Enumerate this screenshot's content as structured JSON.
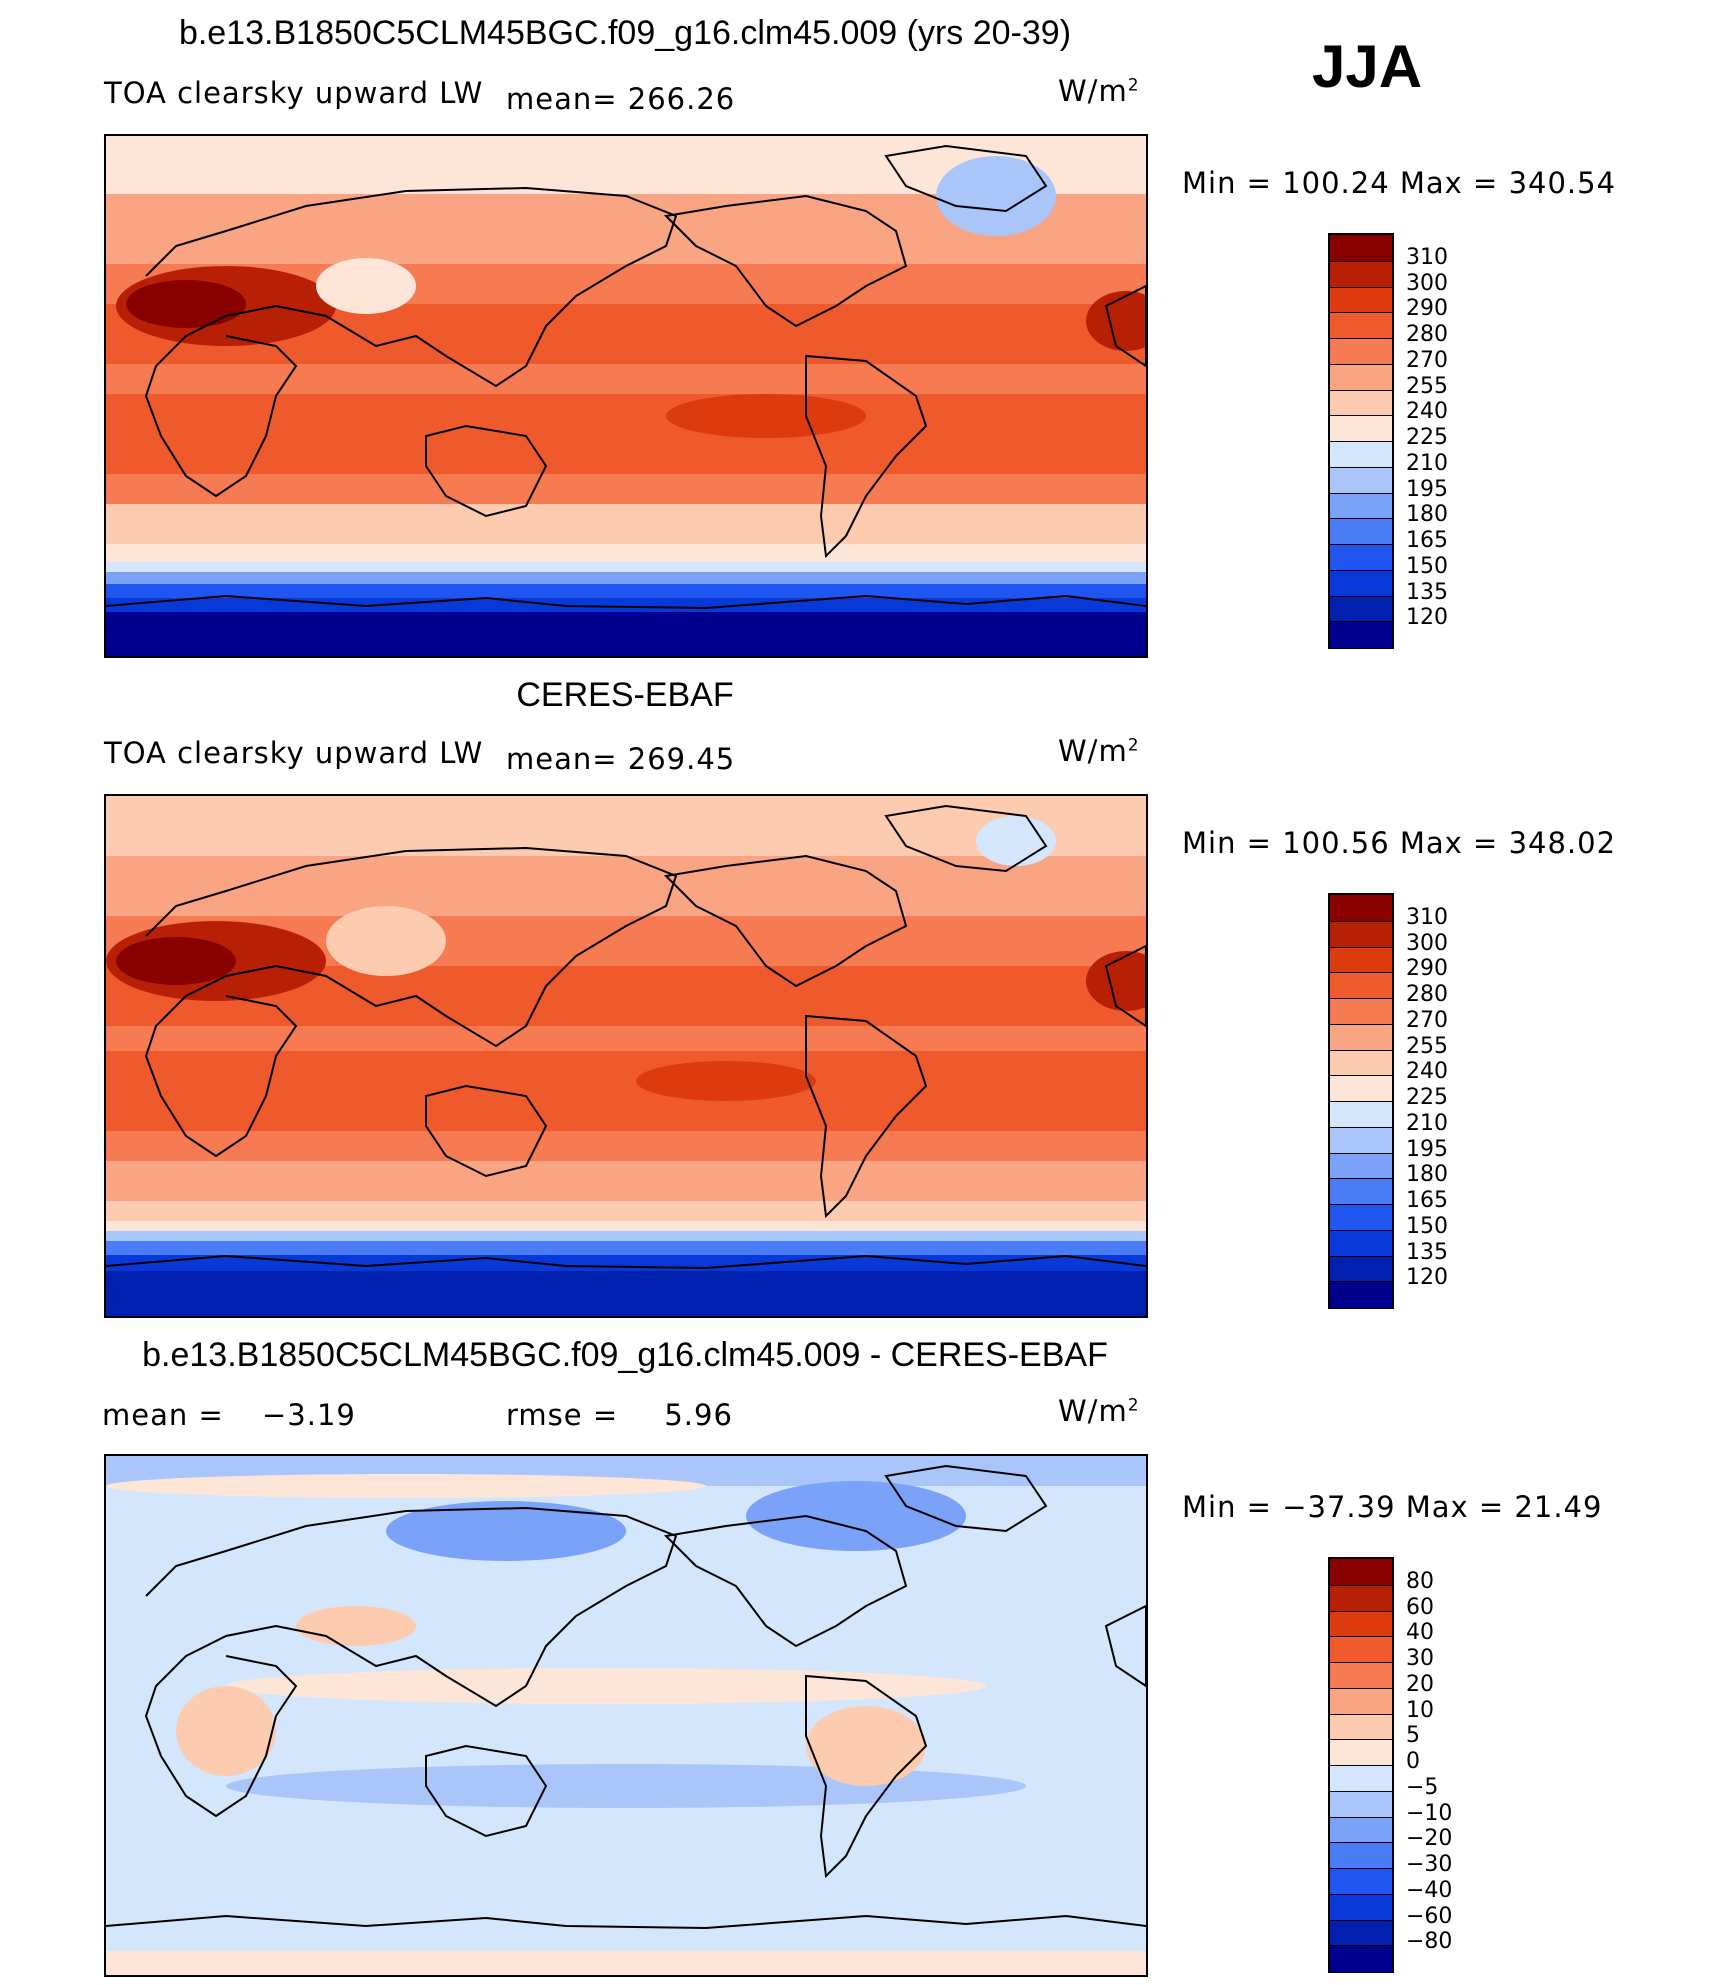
{
  "season": "JJA",
  "units": "W/m",
  "units_exp": "2",
  "panels": [
    {
      "title": "b.e13.B1850C5CLM45BGC.f09_g16.clm45.009 (yrs 20-39)",
      "left_label": "TOA clearsky upward LW",
      "stat_label": "mean=",
      "stat_value": "266.26",
      "min_max": "Min  =  100.24  Max  =  340.54",
      "colorbar": [
        "310",
        "300",
        "290",
        "280",
        "270",
        "255",
        "240",
        "225",
        "210",
        "195",
        "180",
        "165",
        "150",
        "135",
        "120"
      ]
    },
    {
      "title": "CERES-EBAF",
      "left_label": "TOA clearsky upward LW",
      "stat_label": "mean=",
      "stat_value": "269.45",
      "min_max": "Min  =  100.56  Max  =  348.02",
      "colorbar": [
        "310",
        "300",
        "290",
        "280",
        "270",
        "255",
        "240",
        "225",
        "210",
        "195",
        "180",
        "165",
        "150",
        "135",
        "120"
      ]
    },
    {
      "title": "b.e13.B1850C5CLM45BGC.f09_g16.clm45.009 - CERES-EBAF",
      "mean_label": "mean  =",
      "mean_value": "−3.19",
      "rmse_label": "rmse  =",
      "rmse_value": "5.96",
      "min_max": "Min  =  −37.39  Max  =    21.49",
      "colorbar": [
        "80",
        "60",
        "40",
        "30",
        "20",
        "10",
        "5",
        "0",
        "−5",
        "−10",
        "−20",
        "−30",
        "−40",
        "−60",
        "−80"
      ]
    }
  ],
  "chart_data": [
    {
      "type": "heatmap",
      "title": "b.e13.B1850C5CLM45BGC.f09_g16.clm45.009 (yrs 20-39)",
      "variable": "TOA clearsky upward LW",
      "season": "JJA",
      "units": "W/m2",
      "mean": 266.26,
      "min": 100.24,
      "max": 340.54,
      "levels": [
        120,
        135,
        150,
        165,
        180,
        195,
        210,
        225,
        240,
        255,
        270,
        280,
        290,
        300,
        310
      ],
      "colors": [
        "#00008f",
        "#0020b0",
        "#0838d8",
        "#2055f0",
        "#4a7cf6",
        "#7aa2f8",
        "#a9c5fa",
        "#d4e6fc",
        "#fde6d7",
        "#fccbb0",
        "#f9a483",
        "#f67a52",
        "#ef5a2c",
        "#dd3a10",
        "#b82006",
        "#880000"
      ]
    },
    {
      "type": "heatmap",
      "title": "CERES-EBAF",
      "variable": "TOA clearsky upward LW",
      "season": "JJA",
      "units": "W/m2",
      "mean": 269.45,
      "min": 100.56,
      "max": 348.02,
      "levels": [
        120,
        135,
        150,
        165,
        180,
        195,
        210,
        225,
        240,
        255,
        270,
        280,
        290,
        300,
        310
      ],
      "colors": [
        "#00008f",
        "#0020b0",
        "#0838d8",
        "#2055f0",
        "#4a7cf6",
        "#7aa2f8",
        "#a9c5fa",
        "#d4e6fc",
        "#fde6d7",
        "#fccbb0",
        "#f9a483",
        "#f67a52",
        "#ef5a2c",
        "#dd3a10",
        "#b82006",
        "#880000"
      ]
    },
    {
      "type": "heatmap",
      "title": "b.e13.B1850C5CLM45BGC.f09_g16.clm45.009 - CERES-EBAF",
      "season": "JJA",
      "units": "W/m2",
      "mean": -3.19,
      "rmse": 5.96,
      "min": -37.39,
      "max": 21.49,
      "levels": [
        -80,
        -60,
        -40,
        -30,
        -20,
        -10,
        -5,
        0,
        5,
        10,
        20,
        30,
        40,
        60,
        80
      ],
      "colors": [
        "#00008f",
        "#0020b0",
        "#0838d8",
        "#2055f0",
        "#4a7cf6",
        "#7aa2f8",
        "#a9c5fa",
        "#d4e6fc",
        "#fde6d7",
        "#fccbb0",
        "#f9a483",
        "#f67a52",
        "#ef5a2c",
        "#dd3a10",
        "#b82006",
        "#880000"
      ]
    }
  ]
}
